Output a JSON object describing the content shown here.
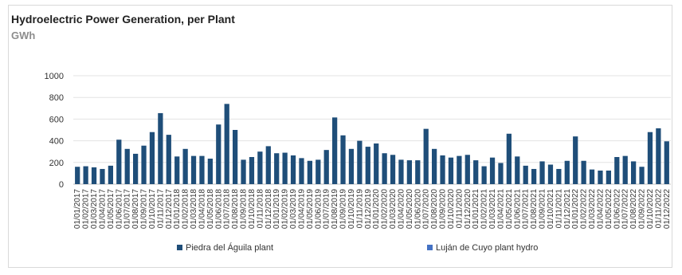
{
  "chart_data": {
    "type": "bar",
    "title": "Hydroelectric Power Generation, per Plant",
    "subtitle": "GWh",
    "xlabel": "",
    "ylabel": "",
    "ylim": [
      0,
      1000
    ],
    "yticks": [
      0,
      200,
      400,
      600,
      800,
      1000
    ],
    "grid": true,
    "legend_position": "bottom",
    "colors": {
      "Piedra del Águila plant": "#1f4e79",
      "Luján de Cuyo plant hydro": "#4472c4"
    },
    "categories": [
      "01/01/2017",
      "01/02/2017",
      "01/03/2017",
      "01/04/2017",
      "01/05/2017",
      "01/06/2017",
      "01/07/2017",
      "01/08/2017",
      "01/09/2017",
      "01/10/2017",
      "01/11/2017",
      "01/12/2017",
      "01/01/2018",
      "01/02/2018",
      "01/03/2018",
      "01/04/2018",
      "01/05/2018",
      "01/06/2018",
      "01/07/2018",
      "01/08/2018",
      "01/09/2018",
      "01/10/2018",
      "01/11/2018",
      "01/12/2018",
      "01/01/2019",
      "01/02/2019",
      "01/03/2019",
      "01/04/2019",
      "01/05/2019",
      "01/06/2019",
      "01/07/2019",
      "01/08/2019",
      "01/09/2019",
      "01/10/2019",
      "01/11/2019",
      "01/12/2019",
      "01/01/2020",
      "01/02/2020",
      "01/03/2020",
      "01/04/2020",
      "01/05/2020",
      "01/06/2020",
      "01/07/2020",
      "01/08/2020",
      "01/09/2020",
      "01/10/2020",
      "01/11/2020",
      "01/12/2020",
      "01/01/2021",
      "01/02/2021",
      "01/03/2021",
      "01/04/2021",
      "01/05/2021",
      "01/06/2021",
      "01/07/2021",
      "01/08/2021",
      "01/09/2021",
      "01/10/2021",
      "01/11/2021",
      "01/12/2021",
      "01/01/2022",
      "01/02/2022",
      "01/03/2022",
      "01/04/2022",
      "01/05/2022",
      "01/06/2022",
      "01/07/2022",
      "01/08/2022",
      "01/09/2022",
      "01/10/2022",
      "01/11/2022",
      "01/12/2022"
    ],
    "series": [
      {
        "name": "Piedra del Águila plant",
        "values": [
          160,
          165,
          155,
          140,
          170,
          410,
          325,
          280,
          355,
          480,
          655,
          455,
          255,
          325,
          260,
          260,
          235,
          550,
          740,
          500,
          225,
          250,
          300,
          350,
          285,
          290,
          265,
          240,
          215,
          225,
          315,
          615,
          450,
          325,
          400,
          345,
          375,
          285,
          270,
          225,
          220,
          220,
          510,
          325,
          265,
          245,
          260,
          270,
          220,
          165,
          245,
          195,
          465,
          255,
          170,
          140,
          210,
          180,
          140,
          215,
          440,
          215,
          135,
          125,
          125,
          250,
          260,
          210,
          160,
          480,
          515,
          395
        ]
      },
      {
        "name": "Luján de Cuyo plant hydro",
        "values": [
          0,
          0,
          0,
          0,
          0,
          0,
          0,
          0,
          0,
          0,
          0,
          0,
          0,
          0,
          0,
          0,
          0,
          0,
          0,
          0,
          0,
          0,
          0,
          0,
          0,
          0,
          0,
          0,
          0,
          0,
          0,
          0,
          0,
          0,
          0,
          0,
          0,
          0,
          0,
          0,
          0,
          0,
          0,
          0,
          0,
          0,
          0,
          0,
          0,
          0,
          0,
          0,
          0,
          0,
          0,
          0,
          0,
          0,
          0,
          0,
          0,
          0,
          0,
          0,
          0,
          0,
          0,
          0,
          0,
          0,
          0,
          0
        ]
      }
    ]
  }
}
